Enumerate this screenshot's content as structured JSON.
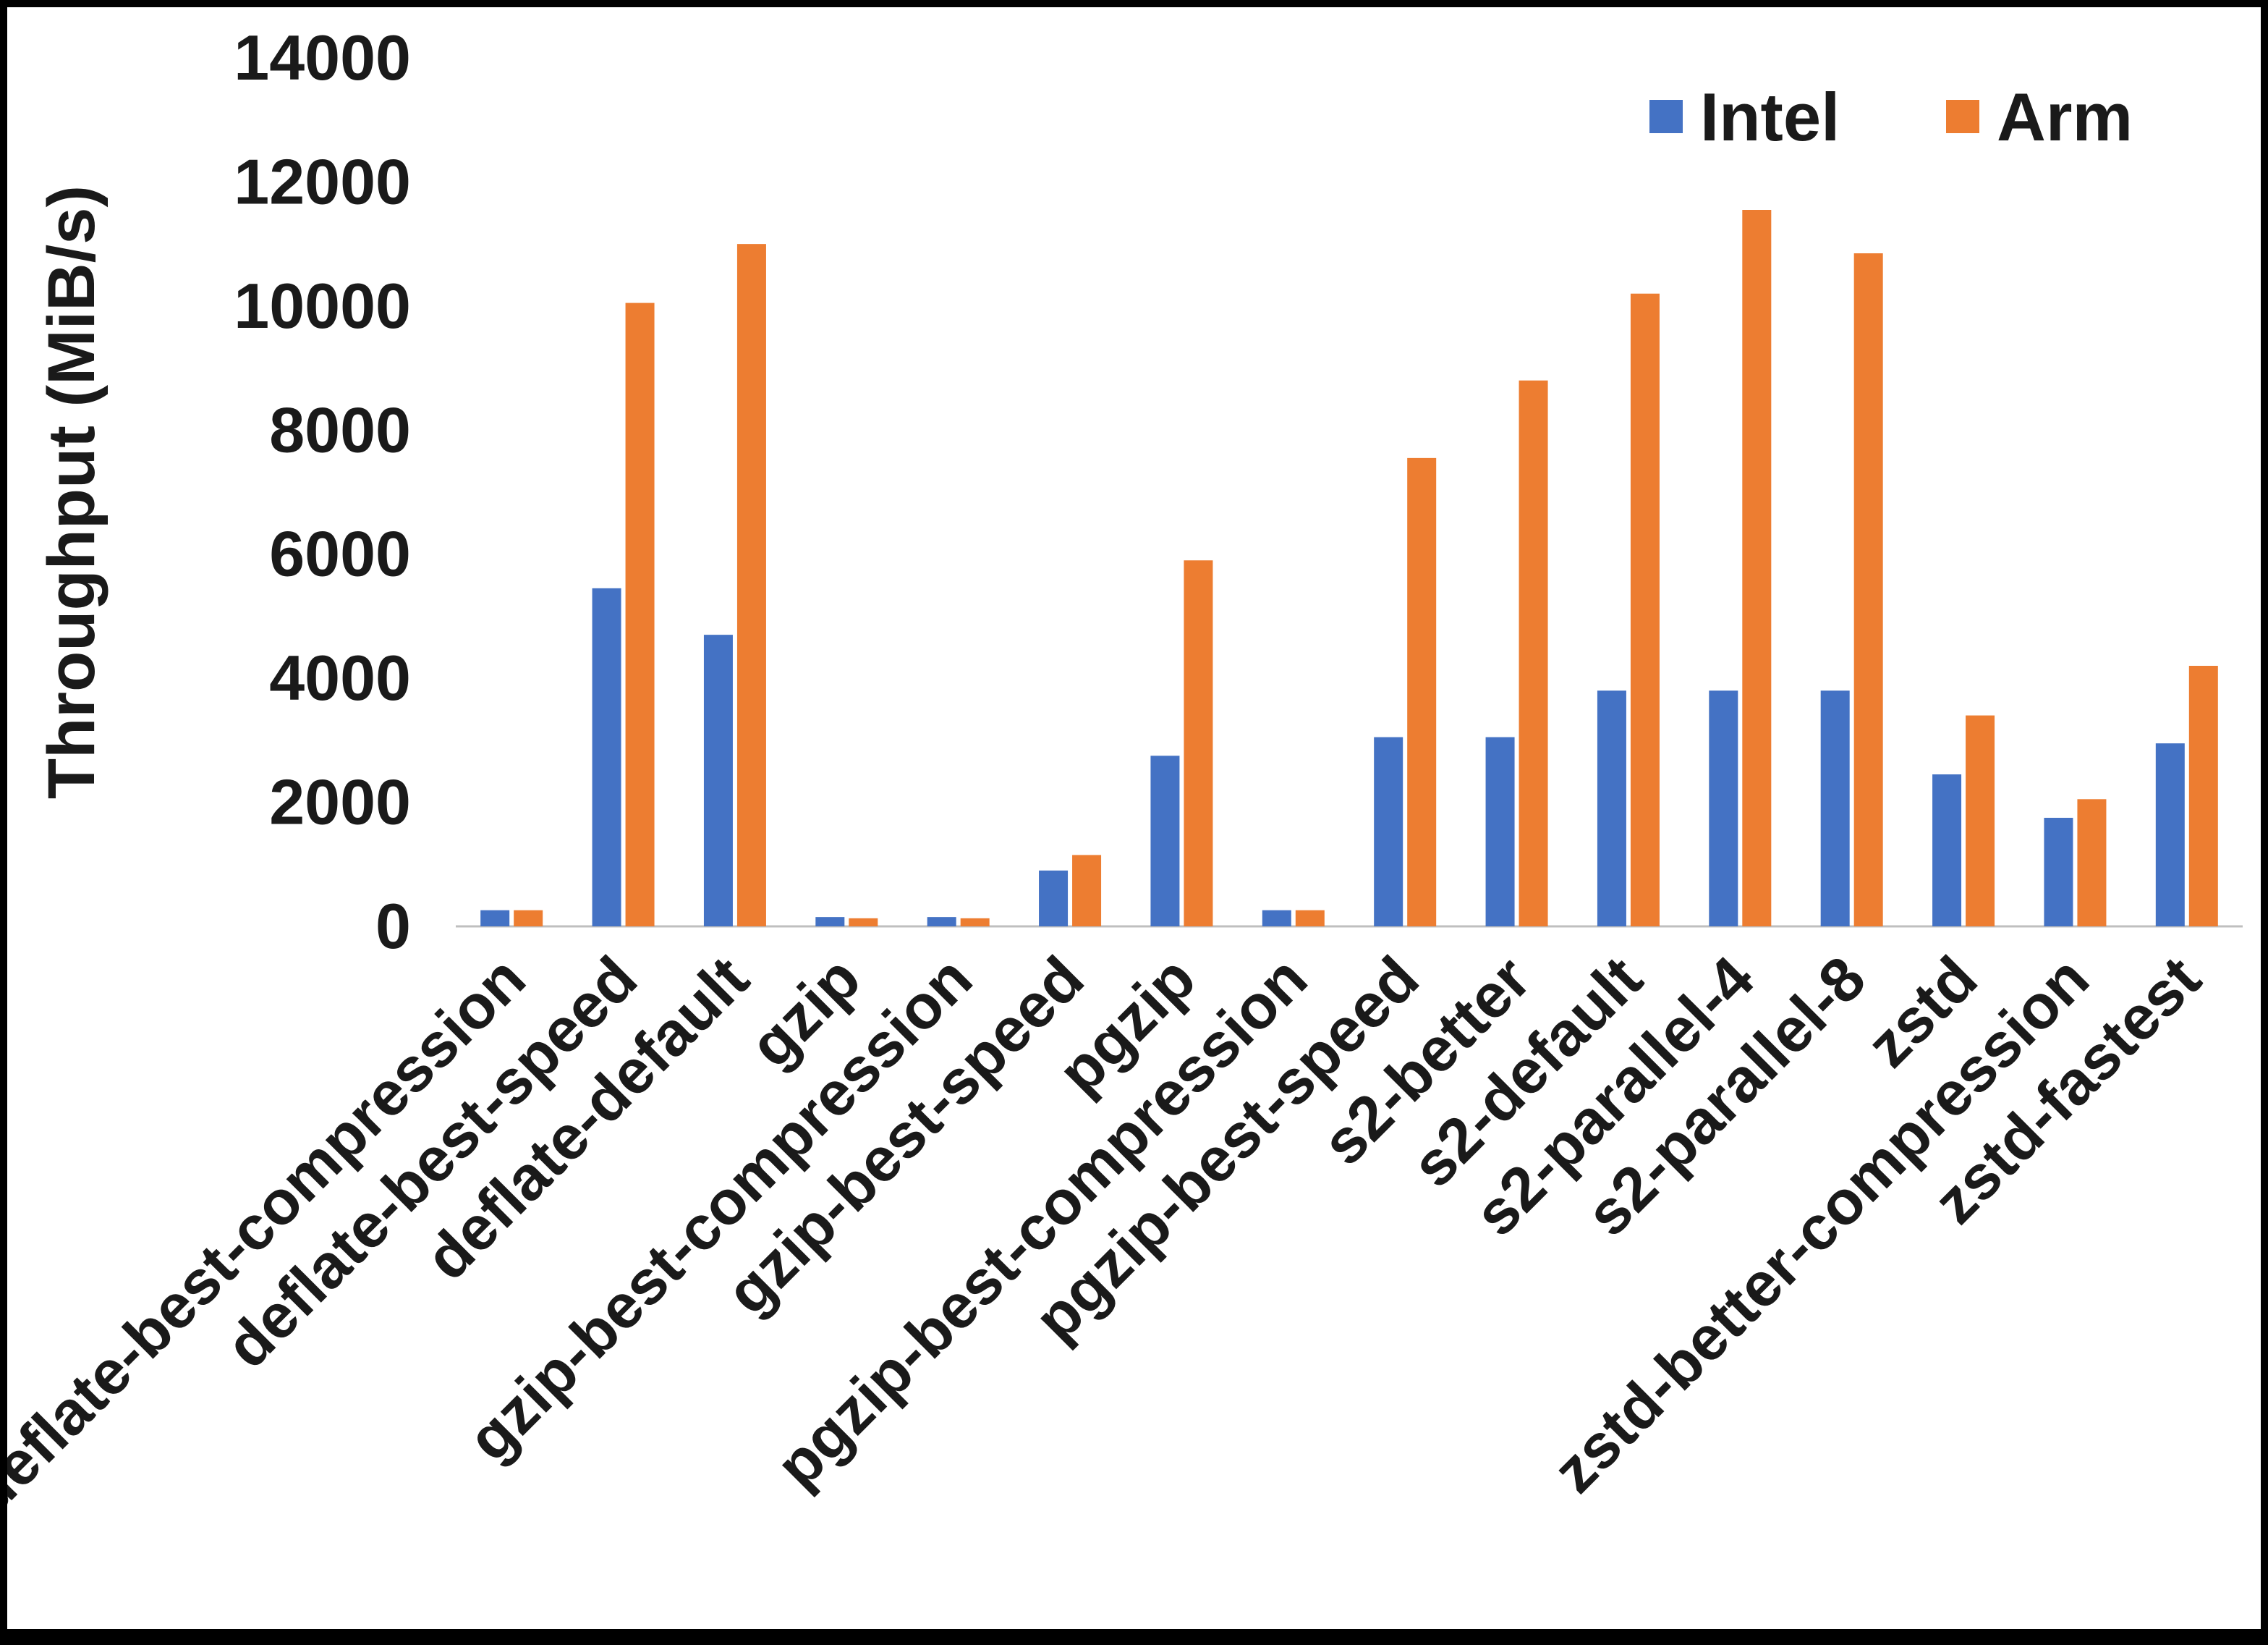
{
  "chart_data": {
    "type": "bar",
    "title": "",
    "xlabel": "",
    "ylabel": "Throughput (MiB/s)",
    "ylim": [
      0,
      14000
    ],
    "ytick_interval": 2000,
    "grid": false,
    "legend_position": "top-right",
    "axis_line_color": "#BFBFBF",
    "categories": [
      "deflate-best-compression",
      "deflate-best-speed",
      "deflate-default",
      "gzip",
      "gzip-best-compression",
      "gzip-best-speed",
      "pgzip",
      "pgzip-best-compression",
      "pgzip-best-speed",
      "s2-better",
      "s2-default",
      "s2-parallel-4",
      "s2-parallel-8",
      "zstd",
      "zstd-better-compression",
      "zstd-fastest"
    ],
    "series": [
      {
        "name": "Intel",
        "color": "#4472C4",
        "values": [
          260,
          5450,
          4700,
          150,
          150,
          900,
          2750,
          260,
          3050,
          3050,
          3800,
          3800,
          3800,
          2450,
          1750,
          2950
        ]
      },
      {
        "name": "Arm",
        "color": "#ED7D31",
        "values": [
          260,
          10050,
          11000,
          130,
          130,
          1150,
          5900,
          260,
          7550,
          8800,
          10200,
          11550,
          10850,
          3400,
          2050,
          4200
        ]
      }
    ]
  }
}
